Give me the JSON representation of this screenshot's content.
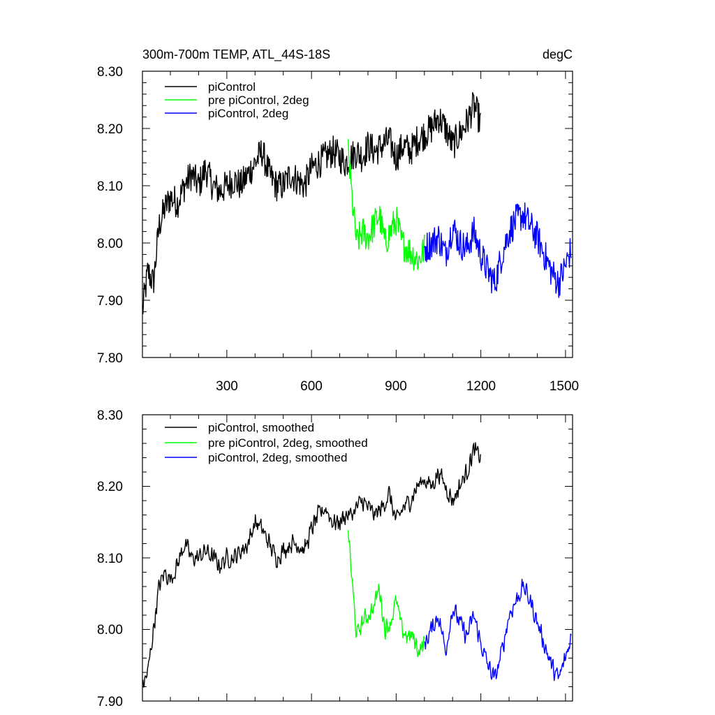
{
  "panels": [
    {
      "id": "top",
      "title_left": "300m-700m TEMP, ATL_44S-18S",
      "title_right": "degC",
      "y_ticks": [
        "8.30",
        "8.20",
        "8.10",
        "8.00",
        "7.90",
        "7.80"
      ],
      "x_ticks": [
        "300",
        "600",
        "900",
        "1200",
        "1500"
      ],
      "legend": [
        "piControl",
        "pre piControl, 2deg",
        "piControl, 2deg"
      ]
    },
    {
      "id": "bottom",
      "title_left": "",
      "title_right": "",
      "y_ticks": [
        "8.30",
        "8.20",
        "8.10",
        "8.00",
        "7.90"
      ],
      "x_ticks": [],
      "legend": [
        "piControl, smoothed",
        "pre piControl, 2deg, smoothed",
        "piControl, 2deg, smoothed"
      ]
    }
  ],
  "chart_data": [
    {
      "type": "line",
      "title": "300m-700m TEMP, ATL_44S-18S",
      "ylabel": "degC",
      "xlim": [
        1,
        1525
      ],
      "ylim": [
        7.8,
        8.3
      ],
      "series_colors": [
        "#000000",
        "#00ff00",
        "#0000ff"
      ],
      "series": [
        {
          "name": "piControl",
          "color": "#000000",
          "x": [
            1,
            20,
            40,
            60,
            80,
            100,
            125,
            150,
            175,
            200,
            225,
            250,
            275,
            300,
            325,
            350,
            375,
            400,
            425,
            450,
            475,
            500,
            525,
            550,
            575,
            600,
            625,
            650,
            675,
            700,
            720,
            740,
            760,
            780,
            800,
            825,
            850,
            875,
            900,
            925,
            950,
            975,
            1000,
            1025,
            1050,
            1075,
            1100,
            1125,
            1150,
            1175,
            1200
          ],
          "values": [
            7.88,
            7.95,
            7.93,
            8.03,
            8.06,
            8.08,
            8.07,
            8.1,
            8.12,
            8.1,
            8.13,
            8.1,
            8.09,
            8.1,
            8.11,
            8.1,
            8.12,
            8.14,
            8.16,
            8.12,
            8.1,
            8.1,
            8.12,
            8.11,
            8.1,
            8.13,
            8.14,
            8.15,
            8.16,
            8.15,
            8.14,
            8.15,
            8.16,
            8.15,
            8.17,
            8.16,
            8.17,
            8.18,
            8.15,
            8.17,
            8.16,
            8.18,
            8.19,
            8.2,
            8.22,
            8.2,
            8.17,
            8.19,
            8.21,
            8.24,
            8.21
          ]
        },
        {
          "name": "pre piControl, 2deg",
          "color": "#00ff00",
          "x": [
            730,
            745,
            760,
            780,
            800,
            820,
            840,
            860,
            880,
            900,
            920,
            940,
            960,
            980,
            1000
          ],
          "values": [
            8.16,
            8.07,
            8.0,
            8.02,
            8.01,
            8.03,
            8.05,
            8.0,
            8.02,
            8.04,
            8.0,
            7.99,
            7.98,
            7.97,
            7.99
          ]
        },
        {
          "name": "piControl, 2deg",
          "color": "#0000ff",
          "x": [
            1000,
            1025,
            1050,
            1075,
            1100,
            1125,
            1150,
            1175,
            1200,
            1225,
            1250,
            1275,
            1300,
            1325,
            1350,
            1375,
            1400,
            1425,
            1450,
            1475,
            1500,
            1520
          ],
          "values": [
            7.99,
            8.0,
            8.01,
            7.98,
            8.03,
            8.0,
            7.99,
            8.02,
            7.98,
            7.95,
            7.93,
            7.98,
            8.02,
            8.04,
            8.05,
            8.03,
            8.01,
            7.98,
            7.95,
            7.93,
            7.96,
            7.99
          ]
        }
      ]
    },
    {
      "type": "line",
      "title": "",
      "xlim": [
        1,
        1525
      ],
      "ylim": [
        7.9,
        8.3
      ],
      "series_colors": [
        "#000000",
        "#00ff00",
        "#0000ff"
      ],
      "series": [
        {
          "name": "piControl, smoothed",
          "color": "#000000",
          "x": [
            1,
            20,
            40,
            60,
            80,
            100,
            125,
            150,
            175,
            200,
            225,
            250,
            275,
            300,
            325,
            350,
            375,
            400,
            425,
            450,
            475,
            500,
            525,
            550,
            575,
            600,
            625,
            650,
            675,
            700,
            720,
            740,
            760,
            780,
            800,
            825,
            850,
            875,
            900,
            925,
            950,
            975,
            1000,
            1025,
            1050,
            1075,
            1100,
            1125,
            1150,
            1175,
            1200
          ],
          "values": [
            7.92,
            7.94,
            8.0,
            8.06,
            8.08,
            8.07,
            8.09,
            8.12,
            8.1,
            8.1,
            8.11,
            8.1,
            8.09,
            8.1,
            8.1,
            8.11,
            8.12,
            8.15,
            8.14,
            8.12,
            8.1,
            8.11,
            8.12,
            8.12,
            8.11,
            8.14,
            8.16,
            8.17,
            8.15,
            8.15,
            8.16,
            8.16,
            8.17,
            8.18,
            8.17,
            8.16,
            8.17,
            8.19,
            8.15,
            8.17,
            8.18,
            8.2,
            8.21,
            8.2,
            8.22,
            8.2,
            8.18,
            8.2,
            8.22,
            8.25,
            8.24
          ]
        },
        {
          "name": "pre piControl, 2deg, smoothed",
          "color": "#00ff00",
          "x": [
            730,
            745,
            760,
            780,
            800,
            820,
            840,
            860,
            880,
            900,
            920,
            940,
            960,
            980,
            1000
          ],
          "values": [
            8.14,
            8.06,
            7.99,
            8.01,
            8.02,
            8.03,
            8.06,
            8.0,
            8.01,
            8.04,
            8.0,
            7.99,
            7.99,
            7.97,
            7.98
          ]
        },
        {
          "name": "piControl, 2deg, smoothed",
          "color": "#0000ff",
          "x": [
            1000,
            1025,
            1050,
            1075,
            1100,
            1125,
            1150,
            1175,
            1200,
            1225,
            1250,
            1275,
            1300,
            1325,
            1350,
            1375,
            1400,
            1425,
            1450,
            1475,
            1500,
            1520
          ],
          "values": [
            7.98,
            8.0,
            8.02,
            7.97,
            8.03,
            8.01,
            7.99,
            8.02,
            7.98,
            7.95,
            7.93,
            7.97,
            8.02,
            8.04,
            8.06,
            8.04,
            8.01,
            7.98,
            7.95,
            7.93,
            7.96,
            7.99
          ]
        }
      ]
    }
  ]
}
